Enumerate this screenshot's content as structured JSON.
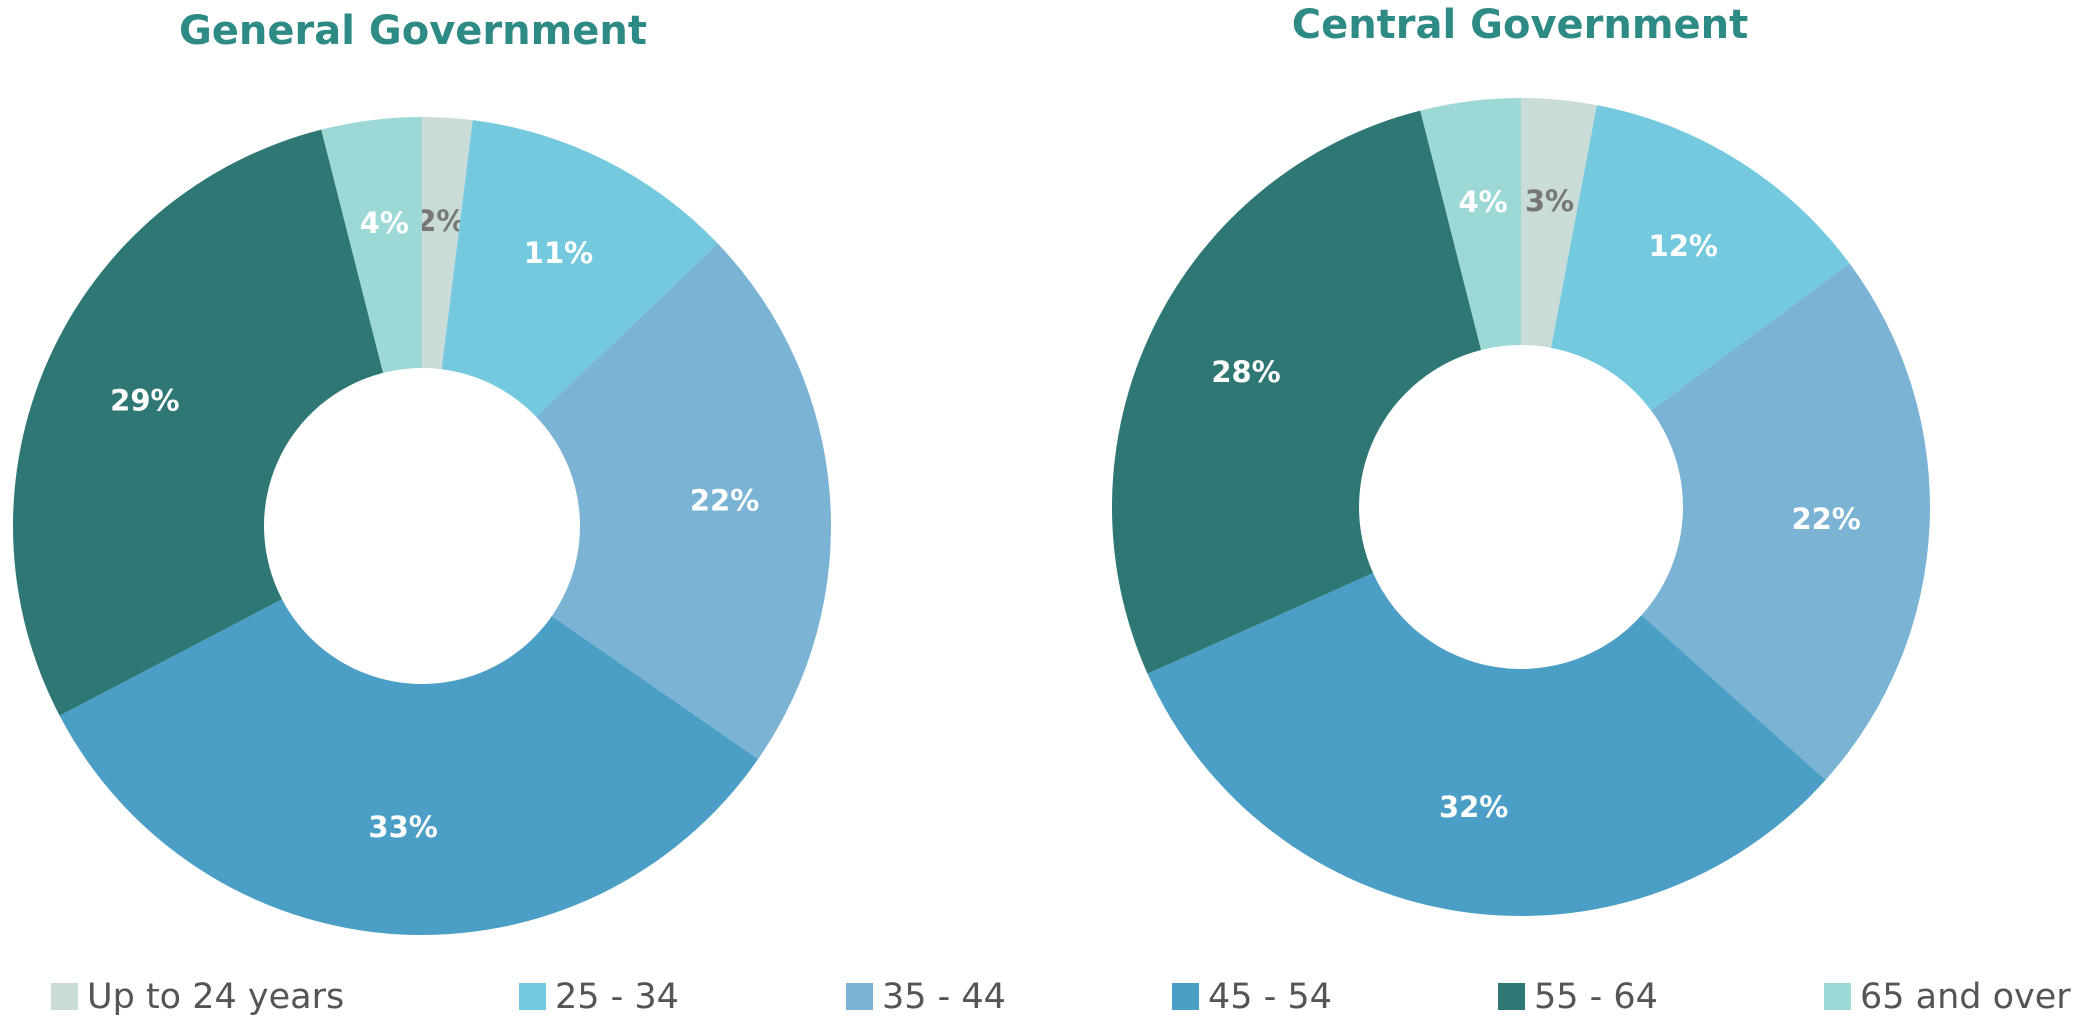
{
  "chart_data": [
    {
      "type": "donut",
      "title": "General Government",
      "categories": [
        "Up to 24 years",
        "25 - 34",
        "35 - 44",
        "45 - 54",
        "55 - 64",
        "65 and over"
      ],
      "values": [
        2,
        11,
        22,
        33,
        29,
        4
      ],
      "value_labels": [
        "2%",
        "11%",
        "22%",
        "33%",
        "29%",
        "4%"
      ],
      "colors": [
        "#c9dcd8",
        "#74c9de",
        "#7ab3d4",
        "#4b9ec5",
        "#2e7774",
        "#9bd8d6"
      ]
    },
    {
      "type": "donut",
      "title": "Central Government",
      "categories": [
        "Up to 24 years",
        "25 - 34",
        "35 - 44",
        "45 - 54",
        "55 - 64",
        "65 and over"
      ],
      "values": [
        3,
        12,
        22,
        32,
        28,
        4
      ],
      "value_labels": [
        "3%",
        "12%",
        "22%",
        "32%",
        "28%",
        "4%"
      ],
      "colors": [
        "#c9dcd8",
        "#74c9de",
        "#7ab3d4",
        "#4b9ec5",
        "#2e7774",
        "#9bd8d6"
      ]
    }
  ]
}
